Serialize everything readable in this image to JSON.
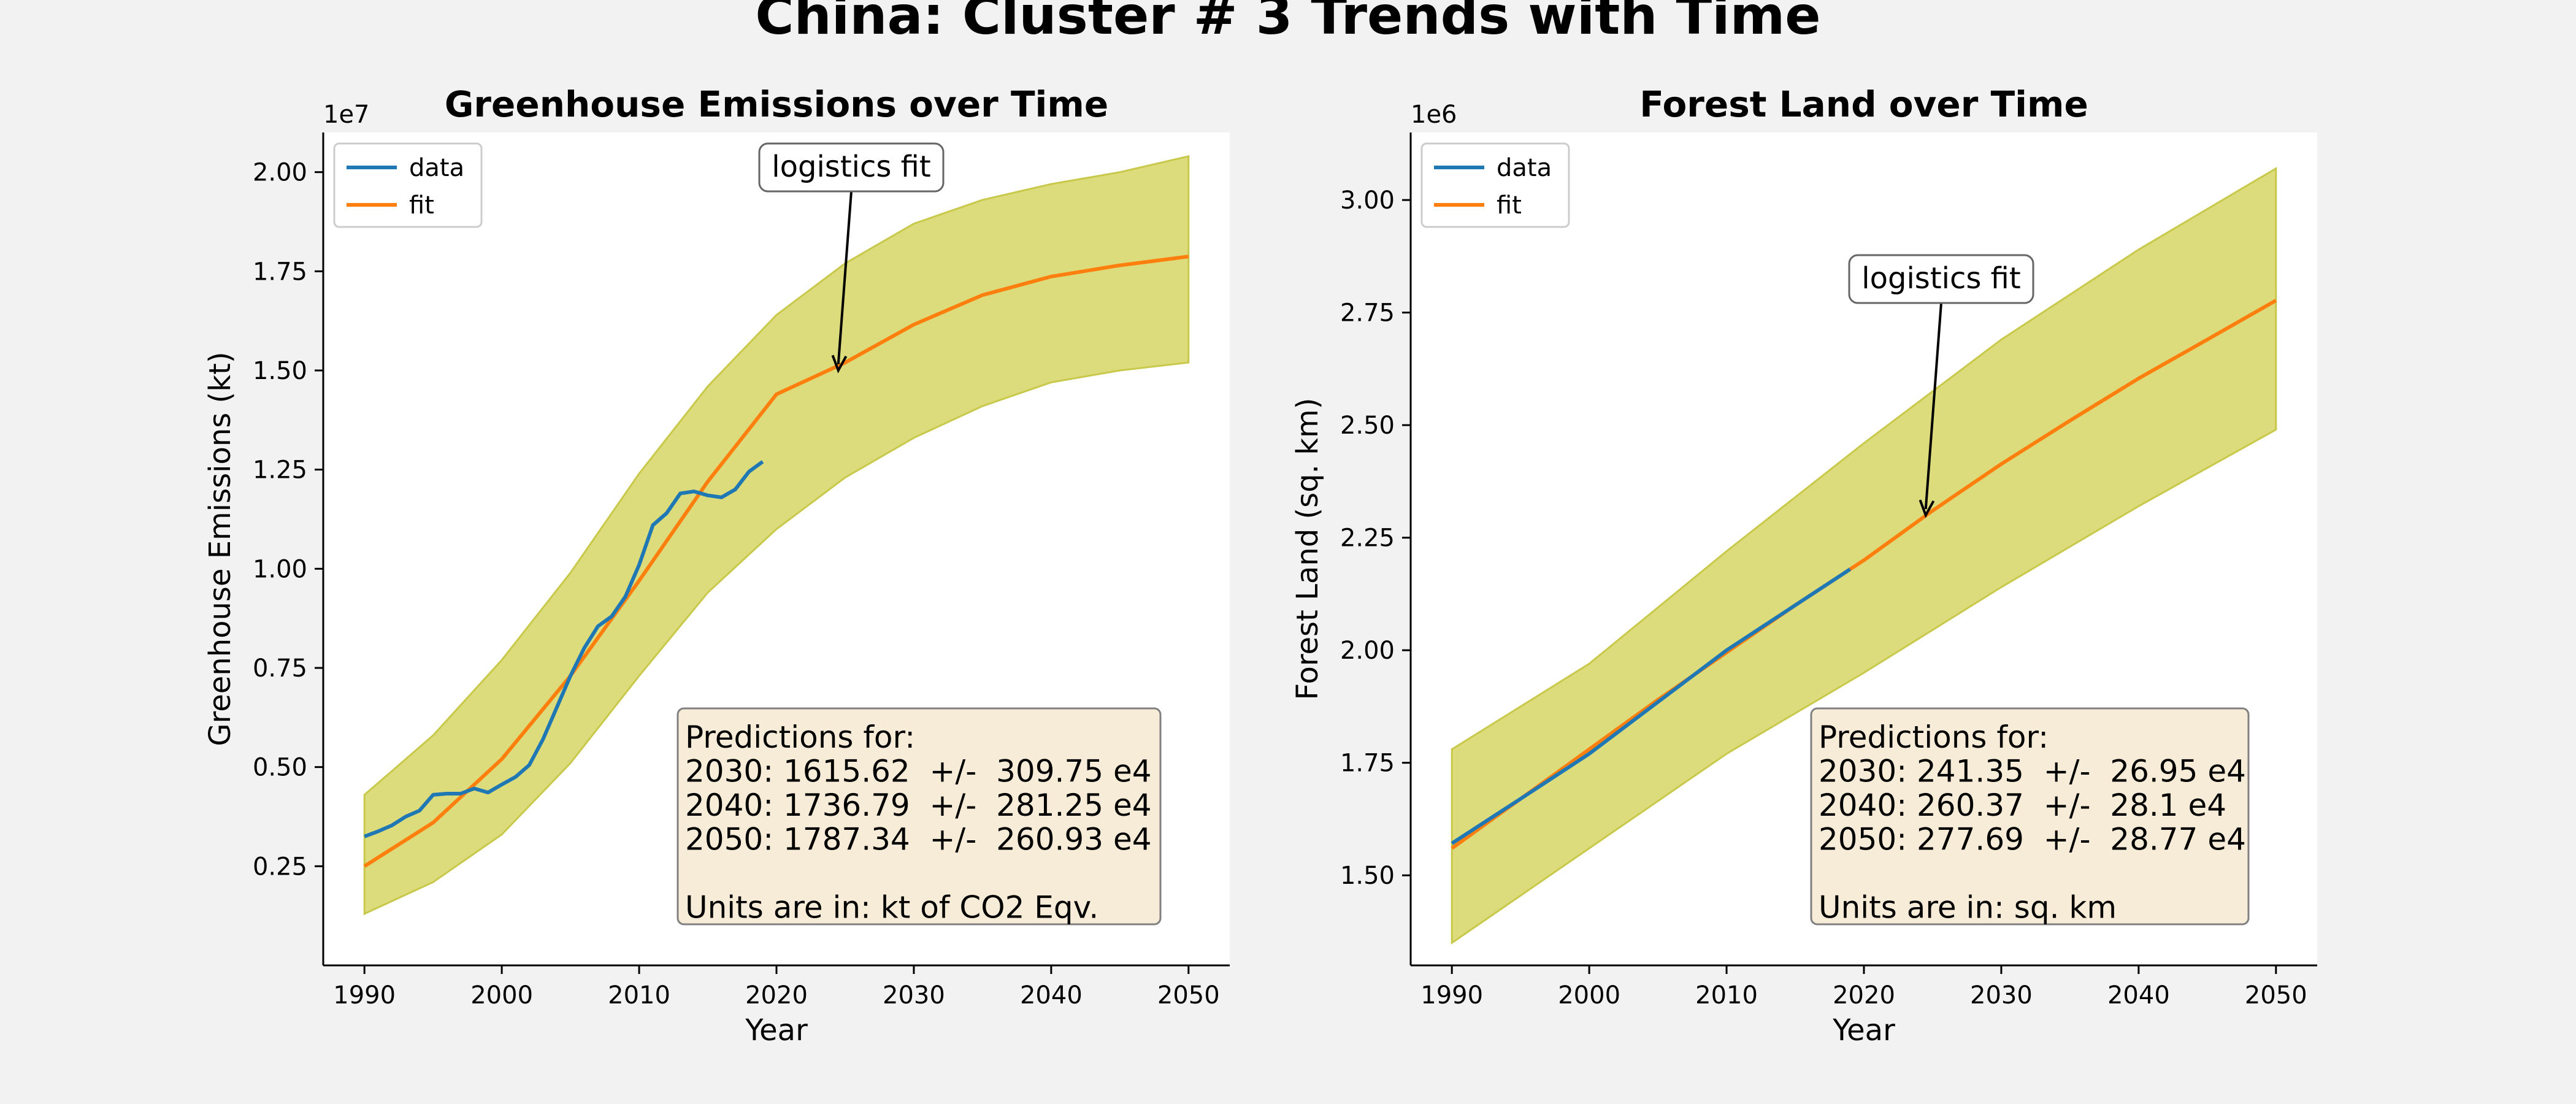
{
  "suptitle": "China: Cluster # 3 Trends with Time",
  "colors": {
    "data": "#1f77b4",
    "fit": "#ff7f0e",
    "band": "#dcdc7c",
    "band_edge": "#c8c84a",
    "box_fill": "#f7ecd7",
    "box_edge": "#808080"
  },
  "chart_data": [
    {
      "type": "line",
      "title": "Greenhouse Emissions over Time",
      "xlabel": "Year",
      "ylabel": "Greenhouse Emissions (kt)",
      "y_multiplier_label": "1e7",
      "xlim": [
        1987,
        2053
      ],
      "ylim": [
        0.0,
        21000000
      ],
      "x_ticks": [
        1990,
        2000,
        2010,
        2020,
        2030,
        2040,
        2050
      ],
      "y_ticks": [
        2500000,
        5000000,
        7500000,
        10000000,
        12500000,
        15000000,
        17500000,
        20000000
      ],
      "y_tick_labels": [
        "0.25",
        "0.50",
        "0.75",
        "1.00",
        "1.25",
        "1.50",
        "1.75",
        "2.00"
      ],
      "legend": {
        "position": "top-left",
        "entries": [
          "data",
          "fit"
        ]
      },
      "grid": false,
      "annotation": {
        "text": "logistics fit",
        "x": 2024.5,
        "y": 15000000
      },
      "predictions_box": {
        "position": "bottom-right",
        "lines": [
          "Predictions for:",
          "2030: 1615.62  +/-  309.75 e4",
          "2040: 1736.79  +/-  281.25 e4",
          "2050: 1787.34  +/-  260.93 e4",
          "",
          "Units are in: kt of CO2 Eqv."
        ]
      },
      "series": [
        {
          "name": "data",
          "x": [
            1990,
            1991,
            1992,
            1993,
            1994,
            1995,
            1996,
            1997,
            1998,
            1999,
            2000,
            2001,
            2002,
            2003,
            2004,
            2005,
            2006,
            2007,
            2008,
            2009,
            2010,
            2011,
            2012,
            2013,
            2014,
            2015,
            2016,
            2017,
            2018,
            2019
          ],
          "y": [
            3250000,
            3380000,
            3530000,
            3750000,
            3900000,
            4300000,
            4330000,
            4330000,
            4460000,
            4360000,
            4560000,
            4750000,
            5050000,
            5700000,
            6500000,
            7300000,
            8000000,
            8550000,
            8800000,
            9300000,
            10100000,
            11100000,
            11400000,
            11900000,
            11950000,
            11850000,
            11800000,
            12000000,
            12450000,
            12700000
          ]
        },
        {
          "name": "fit",
          "x": [
            1990,
            1995,
            2000,
            2005,
            2010,
            2015,
            2020,
            2025,
            2030,
            2035,
            2040,
            2045,
            2050
          ],
          "y": [
            2500000,
            3600000,
            5200000,
            7300000,
            9700000,
            12200000,
            14400000,
            15200000,
            16156200,
            16900000,
            17367900,
            17650000,
            17873400
          ]
        }
      ],
      "band": {
        "x": [
          1990,
          1995,
          2000,
          2005,
          2010,
          2015,
          2020,
          2025,
          2030,
          2035,
          2040,
          2045,
          2050
        ],
        "upper": [
          4300000,
          5800000,
          7700000,
          9900000,
          12400000,
          14600000,
          16400000,
          17700000,
          18700000,
          19300000,
          19700000,
          20000000,
          20400000
        ],
        "lower": [
          1300000,
          2100000,
          3300000,
          5100000,
          7300000,
          9400000,
          11000000,
          12300000,
          13300000,
          14100000,
          14700000,
          15000000,
          15200000
        ]
      }
    },
    {
      "type": "line",
      "title": "Forest Land over Time",
      "xlabel": "Year",
      "ylabel": "Forest Land (sq. km)",
      "y_multiplier_label": "1e6",
      "xlim": [
        1987,
        2053
      ],
      "ylim": [
        1300000,
        3150000
      ],
      "x_ticks": [
        1990,
        2000,
        2010,
        2020,
        2030,
        2040,
        2050
      ],
      "y_ticks": [
        1500000,
        1750000,
        2000000,
        2250000,
        2500000,
        2750000,
        3000000
      ],
      "y_tick_labels": [
        "1.50",
        "1.75",
        "2.00",
        "2.25",
        "2.50",
        "2.75",
        "3.00"
      ],
      "legend": {
        "position": "top-left",
        "entries": [
          "data",
          "fit"
        ]
      },
      "grid": false,
      "annotation": {
        "text": "logistics fit",
        "x": 2024.5,
        "y": 2300000
      },
      "predictions_box": {
        "position": "bottom-right",
        "lines": [
          "Predictions for:",
          "2030: 241.35  +/-  26.95 e4",
          "2040: 260.37  +/-  28.1 e4",
          "2050: 277.69  +/-  28.77 e4",
          "",
          "Units are in: sq. km"
        ]
      },
      "series": [
        {
          "name": "data",
          "x": [
            1990,
            1995,
            2000,
            2005,
            2010,
            2015,
            2019
          ],
          "y": [
            1571000,
            1670000,
            1770000,
            1885000,
            2000000,
            2100000,
            2180000
          ]
        },
        {
          "name": "fit",
          "x": [
            1990,
            1995,
            2000,
            2005,
            2010,
            2015,
            2020,
            2025,
            2030,
            2035,
            2040,
            2045,
            2050
          ],
          "y": [
            1560000,
            1670000,
            1780000,
            1890000,
            1995000,
            2100000,
            2200000,
            2310000,
            2413500,
            2510000,
            2603700,
            2690000,
            2776900
          ]
        }
      ],
      "band": {
        "x": [
          1990,
          2000,
          2010,
          2020,
          2030,
          2040,
          2050
        ],
        "upper": [
          1780000,
          1970000,
          2220000,
          2460000,
          2690000,
          2890000,
          3070000
        ],
        "lower": [
          1350000,
          1560000,
          1770000,
          1950000,
          2140000,
          2320000,
          2490000
        ]
      }
    }
  ]
}
